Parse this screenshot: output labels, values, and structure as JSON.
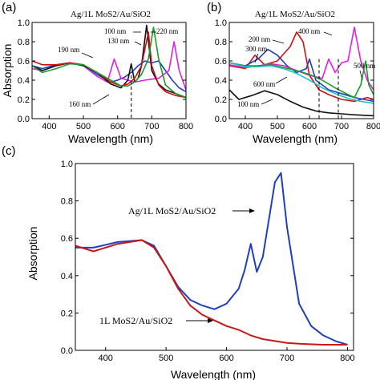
{
  "chart_data": [
    {
      "panel": "(a)",
      "type": "line",
      "title": "Ag/1L MoS2/Au/SiO2",
      "xlabel": "Wavelength (nm)",
      "ylabel": "Absorption",
      "xlim": [
        350,
        800
      ],
      "ylim": [
        0,
        1.0
      ],
      "xticks": [
        400,
        500,
        600,
        700,
        800
      ],
      "yticks": [
        0.0,
        0.2,
        0.4,
        0.6,
        0.8,
        1.0
      ],
      "ytick_labels": [
        "0.0",
        "0.2",
        "0.4",
        "0.6",
        "0.8",
        "1.0"
      ],
      "series": [
        {
          "color": "#1f3fbf",
          "x": [
            350,
            380,
            420,
            460,
            500,
            540,
            580,
            600,
            620,
            640,
            660,
            680,
            700,
            720,
            740,
            760,
            780,
            800
          ],
          "y": [
            0.55,
            0.52,
            0.56,
            0.58,
            0.56,
            0.46,
            0.38,
            0.4,
            0.43,
            0.48,
            0.55,
            0.6,
            0.58,
            0.6,
            0.5,
            0.4,
            0.32,
            0.28
          ]
        },
        {
          "color": "#e020e0",
          "x": [
            350,
            380,
            420,
            460,
            500,
            540,
            570,
            590,
            610,
            630,
            650,
            680,
            720,
            750,
            765,
            780,
            800
          ],
          "y": [
            0.52,
            0.5,
            0.55,
            0.58,
            0.55,
            0.44,
            0.38,
            0.62,
            0.42,
            0.4,
            0.38,
            0.4,
            0.42,
            0.5,
            0.8,
            0.5,
            0.3
          ]
        },
        {
          "color": "#111111",
          "x": [
            350,
            380,
            420,
            460,
            500,
            540,
            580,
            610,
            630,
            640,
            650,
            660,
            670,
            685,
            700,
            720,
            740,
            770,
            800
          ],
          "y": [
            0.55,
            0.5,
            0.55,
            0.58,
            0.55,
            0.48,
            0.36,
            0.32,
            0.4,
            0.57,
            0.38,
            0.42,
            0.55,
            0.97,
            0.5,
            0.36,
            0.3,
            0.26,
            0.22
          ]
        },
        {
          "color": "#d01010",
          "x": [
            350,
            380,
            420,
            460,
            500,
            540,
            580,
            610,
            630,
            650,
            670,
            690,
            700,
            720,
            740,
            770,
            800
          ],
          "y": [
            0.6,
            0.56,
            0.56,
            0.58,
            0.56,
            0.48,
            0.38,
            0.34,
            0.36,
            0.42,
            0.55,
            0.9,
            0.55,
            0.35,
            0.28,
            0.24,
            0.22
          ]
        },
        {
          "color": "#1a9a2a",
          "x": [
            350,
            380,
            420,
            460,
            500,
            540,
            580,
            610,
            630,
            650,
            670,
            690,
            705,
            720,
            740,
            770,
            800
          ],
          "y": [
            0.55,
            0.48,
            0.52,
            0.57,
            0.56,
            0.48,
            0.4,
            0.34,
            0.34,
            0.38,
            0.46,
            0.62,
            0.95,
            0.62,
            0.35,
            0.26,
            0.22
          ]
        }
      ],
      "vline_x": 640,
      "annotations": [
        "100 nm",
        "130 nm",
        "190 nm",
        "160 nm",
        "220 nm"
      ]
    },
    {
      "panel": "(b)",
      "type": "line",
      "title": "Ag/1L MoS2/Au/SiO2",
      "xlabel": "Wavelength (nm)",
      "ylabel": "",
      "xlim": [
        350,
        800
      ],
      "ylim": [
        0,
        1.0
      ],
      "xticks": [
        400,
        500,
        600,
        700,
        800
      ],
      "yticks": [
        0.0,
        0.2,
        0.4,
        0.6,
        0.8,
        1.0
      ],
      "ytick_labels": [
        "0.0",
        "0.2",
        "0.4",
        "0.6",
        "0.8",
        "1.0"
      ],
      "series": [
        {
          "color": "#111111",
          "x": [
            350,
            380,
            420,
            460,
            500,
            540,
            580,
            620,
            660,
            700,
            740,
            800
          ],
          "y": [
            0.3,
            0.2,
            0.24,
            0.29,
            0.25,
            0.18,
            0.12,
            0.08,
            0.06,
            0.05,
            0.04,
            0.03
          ]
        },
        {
          "color": "#d01010",
          "x": [
            350,
            400,
            430,
            460,
            500,
            540,
            560,
            580,
            600,
            630,
            660,
            700,
            740,
            780,
            800
          ],
          "y": [
            0.55,
            0.52,
            0.66,
            0.56,
            0.6,
            0.75,
            0.9,
            0.8,
            0.45,
            0.3,
            0.25,
            0.2,
            0.18,
            0.22,
            0.2
          ]
        },
        {
          "color": "#1f3fbf",
          "x": [
            350,
            400,
            440,
            470,
            500,
            530,
            560,
            590,
            600,
            620,
            660,
            700,
            740,
            800
          ],
          "y": [
            0.58,
            0.55,
            0.62,
            0.72,
            0.66,
            0.55,
            0.48,
            0.52,
            0.62,
            0.4,
            0.3,
            0.26,
            0.22,
            0.18
          ]
        },
        {
          "color": "#e020e0",
          "x": [
            350,
            400,
            440,
            480,
            520,
            560,
            600,
            640,
            660,
            680,
            700,
            720,
            740,
            760,
            780,
            800
          ],
          "y": [
            0.56,
            0.53,
            0.55,
            0.57,
            0.55,
            0.5,
            0.45,
            0.42,
            0.62,
            0.48,
            0.58,
            0.6,
            0.95,
            0.6,
            0.4,
            0.3
          ]
        },
        {
          "color": "#1a9a2a",
          "x": [
            350,
            400,
            440,
            480,
            520,
            560,
            600,
            640,
            680,
            720,
            740,
            760,
            775,
            785,
            800
          ],
          "y": [
            0.58,
            0.55,
            0.55,
            0.56,
            0.53,
            0.5,
            0.46,
            0.4,
            0.32,
            0.25,
            0.22,
            0.35,
            0.6,
            0.35,
            0.25
          ]
        },
        {
          "color": "#20c0c0",
          "x": [
            350,
            400,
            440,
            480,
            520,
            560,
            600,
            640,
            680,
            720,
            760,
            800
          ],
          "y": [
            0.58,
            0.54,
            0.54,
            0.55,
            0.52,
            0.47,
            0.4,
            0.32,
            0.26,
            0.21,
            0.18,
            0.16
          ]
        }
      ],
      "vlines_x": [
        630,
        690
      ],
      "annotations": [
        "400 nm",
        "200 nm",
        "300 nm",
        "600 nm",
        "500 nm",
        "100 nm"
      ]
    },
    {
      "panel": "(c)",
      "type": "line",
      "title": "",
      "xlabel": "Wavelength (nm)",
      "ylabel": "Absorption",
      "xlim": [
        350,
        810
      ],
      "ylim": [
        0,
        1.0
      ],
      "xticks": [
        400,
        500,
        600,
        700,
        800
      ],
      "yticks": [
        0.0,
        0.2,
        0.4,
        0.6,
        0.8,
        1.0
      ],
      "ytick_labels": [
        "0.0",
        "0.2",
        "0.4",
        "0.6",
        "0.8",
        "1.0"
      ],
      "series": [
        {
          "name": "Ag/1L MoS2/Au/SiO2",
          "color": "#1f3fbf",
          "x": [
            350,
            380,
            420,
            460,
            480,
            500,
            520,
            540,
            560,
            580,
            600,
            620,
            630,
            640,
            650,
            660,
            670,
            680,
            690,
            700,
            720,
            740,
            760,
            780,
            800
          ],
          "y": [
            0.55,
            0.55,
            0.58,
            0.59,
            0.56,
            0.45,
            0.34,
            0.27,
            0.24,
            0.22,
            0.25,
            0.33,
            0.43,
            0.57,
            0.42,
            0.5,
            0.7,
            0.9,
            0.95,
            0.66,
            0.25,
            0.13,
            0.08,
            0.05,
            0.03
          ]
        },
        {
          "name": "1L MoS2/Au/SiO2",
          "color": "#c81818",
          "x": [
            350,
            380,
            420,
            460,
            480,
            500,
            520,
            540,
            560,
            580,
            600,
            620,
            640,
            660,
            680,
            700,
            720,
            760,
            800
          ],
          "y": [
            0.56,
            0.53,
            0.57,
            0.59,
            0.55,
            0.45,
            0.33,
            0.24,
            0.19,
            0.16,
            0.13,
            0.11,
            0.08,
            0.06,
            0.05,
            0.04,
            0.035,
            0.03,
            0.03
          ]
        }
      ]
    }
  ]
}
